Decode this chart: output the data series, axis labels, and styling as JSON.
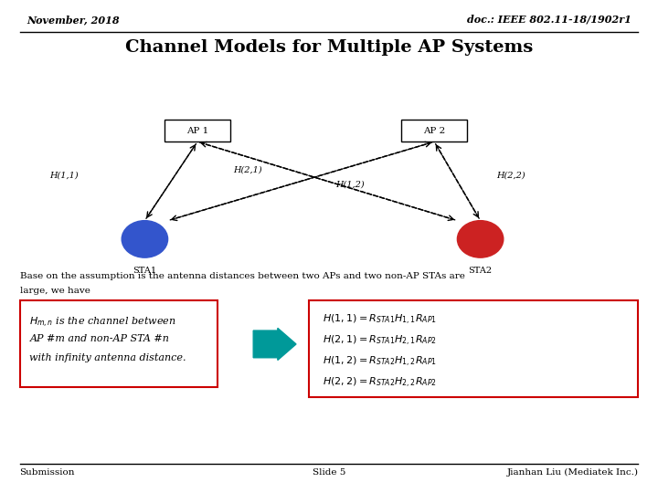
{
  "header_left": "November, 2018",
  "header_right": "doc.: IEEE 802.11-18/1902r1",
  "title": "Channel Models for Multiple AP Systems",
  "ap1_label": "AP 1",
  "ap2_label": "AP 2",
  "sta1_label": "STA1",
  "sta2_label": "STA2",
  "sta1_color": "#3355cc",
  "sta2_color": "#cc2222",
  "h11_label": "H(1,1)",
  "h21_label": "H(2,1)",
  "h12_label": "H(1,2)",
  "h22_label": "H(2,2)",
  "body_text1": "Base on the assumption is the antenna distances between two APs and two non-AP STAs are",
  "body_text2": "large, we have",
  "left_box_line1": "$H_{m,n}$ is the channel between",
  "left_box_line2": "AP #m and non-AP STA #n",
  "left_box_line3": "with infinity antenna distance.",
  "right_box_eq1": "$H(1,1) = R_{STA1}H_{1,1}R_{AP1}$",
  "right_box_eq2": "$H(2,1) = R_{STA1}H_{2,1}R_{AP2}$",
  "right_box_eq3": "$H(1,2) = R_{STA2}H_{1,2}R_{AP1}$",
  "right_box_eq4": "$H(2,2) = R_{STA2}H_{2,2}R_{AP2}$",
  "footer_left": "Submission",
  "footer_center": "Slide 5",
  "footer_right": "Jianhan Liu (Mediatek Inc.)",
  "bg_color": "#ffffff",
  "ap1x": 0.3,
  "ap1y": 0.735,
  "ap2x": 0.66,
  "ap2y": 0.735,
  "sta1x": 0.22,
  "sta1y": 0.515,
  "sta2x": 0.73,
  "sta2y": 0.515
}
